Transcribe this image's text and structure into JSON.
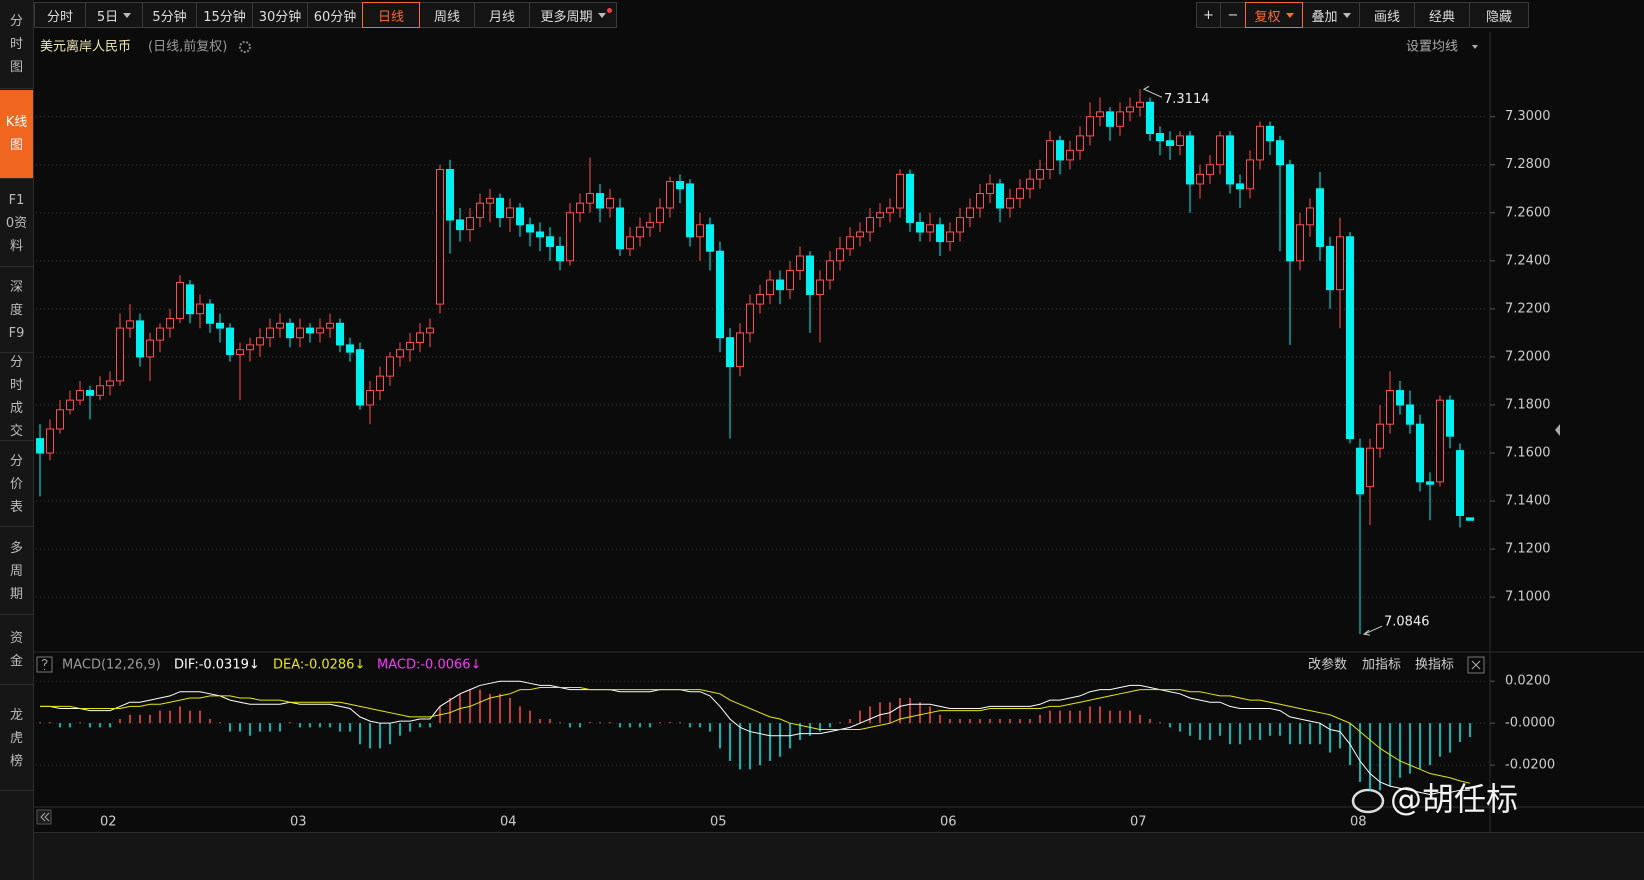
{
  "toolbar": {
    "periods": [
      "分时",
      "5日",
      "5分钟",
      "15分钟",
      "30分钟",
      "60分钟",
      "日线",
      "周线",
      "月线",
      "更多周期"
    ],
    "tools": [
      "+",
      "−",
      "复权",
      "叠加",
      "画线",
      "经典",
      "隐藏"
    ]
  },
  "sidebar": [
    "分时图",
    "K线图",
    "F10资料",
    "深度F9",
    "分时成交",
    "分价表",
    "多周期",
    "资金",
    "龙虎榜"
  ],
  "watermark": "@胡任标",
  "chart_data": {
    "type": "candlestick",
    "title": "美元离岸人民币",
    "subtitle": "(日线,前复权)",
    "ma_setting": "设置均线",
    "up_color": "#ff4d4d",
    "down_color": "#00f0f0",
    "grid": true,
    "ylim": [
      7.078,
      7.334
    ],
    "yticks": [
      {
        "value": 7.1,
        "label": "7.1000"
      },
      {
        "value": 7.12,
        "label": "7.1200"
      },
      {
        "value": 7.14,
        "label": "7.1400"
      },
      {
        "value": 7.16,
        "label": "7.1600"
      },
      {
        "value": 7.18,
        "label": "7.1800"
      },
      {
        "value": 7.2,
        "label": "7.2000"
      },
      {
        "value": 7.22,
        "label": "7.2200"
      },
      {
        "value": 7.24,
        "label": "7.2400"
      },
      {
        "value": 7.26,
        "label": "7.2600"
      },
      {
        "value": 7.28,
        "label": "7.2800"
      },
      {
        "value": 7.3,
        "label": "7.3000"
      }
    ],
    "max_label": 7.3114,
    "min_label": 7.0846,
    "categories": [
      null,
      null,
      null,
      null,
      null,
      null,
      null,
      "02",
      null,
      null,
      null,
      null,
      null,
      null,
      null,
      null,
      null,
      null,
      null,
      null,
      null,
      null,
      null,
      null,
      null,
      null,
      "03",
      null,
      null,
      null,
      null,
      null,
      null,
      null,
      null,
      null,
      null,
      null,
      null,
      null,
      null,
      null,
      null,
      null,
      null,
      null,
      null,
      "04",
      null,
      null,
      null,
      null,
      null,
      null,
      null,
      null,
      null,
      null,
      null,
      null,
      null,
      null,
      null,
      null,
      null,
      null,
      null,
      null,
      "05",
      null,
      null,
      null,
      null,
      null,
      null,
      null,
      null,
      null,
      null,
      null,
      null,
      null,
      null,
      null,
      null,
      null,
      null,
      null,
      null,
      null,
      null,
      "06",
      null,
      null,
      null,
      null,
      null,
      null,
      null,
      null,
      null,
      null,
      null,
      null,
      null,
      null,
      null,
      null,
      null,
      null,
      "07",
      null,
      null,
      null,
      null,
      null,
      null,
      null,
      null,
      null,
      null,
      null,
      null,
      null,
      null,
      null,
      null,
      null,
      null,
      null,
      null,
      null,
      "08",
      null,
      null,
      null,
      null,
      null,
      null,
      null,
      null,
      null,
      null,
      null
    ],
    "open": [
      7.166,
      7.16,
      7.17,
      7.178,
      7.182,
      7.186,
      7.184,
      7.188,
      7.19,
      7.212,
      7.215,
      7.2,
      7.207,
      7.212,
      7.216,
      7.23,
      7.218,
      7.222,
      7.214,
      7.212,
      7.201,
      7.203,
      7.205,
      7.208,
      7.212,
      7.214,
      7.208,
      7.212,
      7.21,
      7.212,
      7.214,
      7.205,
      7.203,
      7.18,
      7.186,
      7.192,
      7.2,
      7.203,
      7.206,
      7.21,
      7.222,
      7.278,
      7.257,
      7.253,
      7.258,
      7.264,
      7.266,
      7.258,
      7.262,
      7.255,
      7.252,
      7.25,
      7.246,
      7.24,
      7.26,
      7.264,
      7.268,
      7.262,
      7.262,
      7.245,
      7.25,
      7.254,
      7.256,
      7.262,
      7.273,
      7.272,
      7.25,
      7.255,
      7.244,
      7.208,
      7.196,
      7.21,
      7.222,
      7.226,
      7.232,
      7.228,
      7.236,
      7.242,
      7.226,
      7.232,
      7.24,
      7.245,
      7.25,
      7.252,
      7.258,
      7.26,
      7.262,
      7.276,
      7.256,
      7.252,
      7.255,
      7.248,
      7.252,
      7.258,
      7.262,
      7.268,
      7.272,
      7.262,
      7.266,
      7.27,
      7.274,
      7.278,
      7.29,
      7.282,
      7.286,
      7.292,
      7.3,
      7.302,
      7.296,
      7.302,
      7.304,
      7.306,
      7.293,
      7.29,
      7.288,
      7.292,
      7.272,
      7.276,
      7.28,
      7.292,
      7.272,
      7.27,
      7.282,
      7.296,
      7.29,
      7.28,
      7.24,
      7.255,
      7.27,
      7.246,
      7.228,
      7.25,
      7.162,
      7.146,
      7.162,
      7.172,
      7.186,
      7.18,
      7.172,
      7.148,
      7.148,
      7.182,
      7.161,
      7.133
    ],
    "high": [
      7.172,
      7.174,
      7.182,
      7.186,
      7.19,
      7.188,
      7.192,
      7.194,
      7.218,
      7.222,
      7.218,
      7.21,
      7.214,
      7.22,
      7.234,
      7.232,
      7.226,
      7.224,
      7.218,
      7.214,
      7.206,
      7.208,
      7.212,
      7.216,
      7.218,
      7.216,
      7.216,
      7.214,
      7.216,
      7.218,
      7.216,
      7.208,
      7.206,
      7.19,
      7.196,
      7.202,
      7.206,
      7.21,
      7.214,
      7.216,
      7.28,
      7.282,
      7.262,
      7.262,
      7.268,
      7.27,
      7.268,
      7.266,
      7.264,
      7.258,
      7.256,
      7.254,
      7.25,
      7.264,
      7.268,
      7.283,
      7.272,
      7.27,
      7.266,
      7.254,
      7.258,
      7.26,
      7.266,
      7.275,
      7.276,
      7.274,
      7.26,
      7.258,
      7.248,
      7.212,
      7.214,
      7.226,
      7.23,
      7.236,
      7.236,
      7.24,
      7.246,
      7.244,
      7.236,
      7.244,
      7.25,
      7.254,
      7.256,
      7.262,
      7.264,
      7.266,
      7.278,
      7.278,
      7.26,
      7.26,
      7.258,
      7.256,
      7.262,
      7.266,
      7.272,
      7.276,
      7.274,
      7.27,
      7.274,
      7.278,
      7.282,
      7.294,
      7.292,
      7.29,
      7.296,
      7.306,
      7.308,
      7.304,
      7.306,
      7.308,
      7.3114,
      7.308,
      7.296,
      7.294,
      7.294,
      7.294,
      7.28,
      7.284,
      7.294,
      7.294,
      7.276,
      7.286,
      7.298,
      7.298,
      7.292,
      7.282,
      7.26,
      7.266,
      7.277,
      7.25,
      7.258,
      7.252,
      7.166,
      7.166,
      7.18,
      7.194,
      7.19,
      7.186,
      7.176,
      7.152,
      7.184,
      7.184,
      7.164,
      7.133
    ],
    "low": [
      7.142,
      7.157,
      7.168,
      7.176,
      7.18,
      7.174,
      7.182,
      7.184,
      7.188,
      7.208,
      7.196,
      7.19,
      7.202,
      7.208,
      7.214,
      7.214,
      7.212,
      7.21,
      7.206,
      7.198,
      7.182,
      7.198,
      7.2,
      7.204,
      7.208,
      7.204,
      7.204,
      7.206,
      7.206,
      7.208,
      7.202,
      7.198,
      7.178,
      7.172,
      7.182,
      7.188,
      7.196,
      7.198,
      7.202,
      7.204,
      7.218,
      7.243,
      7.248,
      7.248,
      7.254,
      7.256,
      7.254,
      7.252,
      7.25,
      7.246,
      7.244,
      7.24,
      7.236,
      7.238,
      7.256,
      7.26,
      7.256,
      7.258,
      7.242,
      7.242,
      7.246,
      7.25,
      7.252,
      7.258,
      7.264,
      7.246,
      7.24,
      7.236,
      7.202,
      7.166,
      7.192,
      7.206,
      7.218,
      7.222,
      7.222,
      7.224,
      7.232,
      7.21,
      7.206,
      7.228,
      7.236,
      7.242,
      7.246,
      7.248,
      7.254,
      7.256,
      7.258,
      7.252,
      7.248,
      7.248,
      7.242,
      7.244,
      7.248,
      7.254,
      7.258,
      7.264,
      7.256,
      7.258,
      7.262,
      7.266,
      7.27,
      7.274,
      7.276,
      7.278,
      7.282,
      7.288,
      7.296,
      7.29,
      7.292,
      7.298,
      7.3,
      7.29,
      7.284,
      7.282,
      7.284,
      7.26,
      7.266,
      7.272,
      7.276,
      7.268,
      7.262,
      7.266,
      7.278,
      7.284,
      7.244,
      7.205,
      7.236,
      7.25,
      7.24,
      7.22,
      7.212,
      7.164,
      7.0846,
      7.13,
      7.158,
      7.168,
      7.176,
      7.168,
      7.144,
      7.132,
      7.146,
      7.162,
      7.129,
      7.132
    ],
    "close": [
      7.16,
      7.17,
      7.178,
      7.182,
      7.186,
      7.184,
      7.188,
      7.19,
      7.212,
      7.215,
      7.2,
      7.207,
      7.212,
      7.216,
      7.231,
      7.218,
      7.222,
      7.214,
      7.212,
      7.201,
      7.203,
      7.205,
      7.208,
      7.212,
      7.214,
      7.208,
      7.212,
      7.21,
      7.212,
      7.214,
      7.205,
      7.202,
      7.18,
      7.186,
      7.192,
      7.2,
      7.203,
      7.206,
      7.21,
      7.212,
      7.278,
      7.257,
      7.253,
      7.258,
      7.264,
      7.266,
      7.258,
      7.262,
      7.255,
      7.252,
      7.25,
      7.246,
      7.24,
      7.26,
      7.264,
      7.268,
      7.262,
      7.266,
      7.245,
      7.25,
      7.254,
      7.256,
      7.262,
      7.273,
      7.27,
      7.25,
      7.255,
      7.244,
      7.208,
      7.196,
      7.21,
      7.222,
      7.226,
      7.232,
      7.228,
      7.236,
      7.242,
      7.226,
      7.232,
      7.24,
      7.245,
      7.25,
      7.252,
      7.258,
      7.26,
      7.262,
      7.276,
      7.256,
      7.252,
      7.255,
      7.248,
      7.252,
      7.258,
      7.262,
      7.268,
      7.272,
      7.262,
      7.266,
      7.27,
      7.274,
      7.278,
      7.29,
      7.282,
      7.286,
      7.292,
      7.3,
      7.302,
      7.296,
      7.302,
      7.304,
      7.306,
      7.293,
      7.29,
      7.288,
      7.292,
      7.272,
      7.276,
      7.28,
      7.292,
      7.272,
      7.27,
      7.282,
      7.296,
      7.29,
      7.28,
      7.24,
      7.255,
      7.262,
      7.246,
      7.228,
      7.25,
      7.166,
      7.143,
      7.162,
      7.172,
      7.186,
      7.18,
      7.172,
      7.148,
      7.147,
      7.182,
      7.167,
      7.134,
      7.132
    ],
    "macd": {
      "title": "MACD(12,26,9)",
      "buttons": [
        "改参数",
        "加指标",
        "换指标"
      ],
      "ylim": [
        -0.039,
        0.0325
      ],
      "yticks": [
        {
          "value": 0.02,
          "label": "0.0200"
        },
        {
          "value": 0,
          "label": "-0.0000"
        },
        {
          "value": -0.02,
          "label": "-0.0200"
        }
      ],
      "series": [
        {
          "name": "DIF",
          "legend": "DIF:-0.0319↓",
          "color": "#ffffff",
          "values": [
            0.008,
            0.008,
            0.007,
            0.007,
            0.007,
            0.006,
            0.006,
            0.006,
            0.008,
            0.01,
            0.01,
            0.011,
            0.012,
            0.013,
            0.015,
            0.015,
            0.015,
            0.014,
            0.013,
            0.011,
            0.01,
            0.009,
            0.009,
            0.009,
            0.009,
            0.01,
            0.009,
            0.009,
            0.009,
            0.009,
            0.008,
            0.007,
            0.003,
            0.001,
            0.0,
            0.0,
            0.001,
            0.001,
            0.002,
            0.002,
            0.008,
            0.011,
            0.014,
            0.016,
            0.018,
            0.019,
            0.02,
            0.02,
            0.02,
            0.019,
            0.018,
            0.018,
            0.017,
            0.016,
            0.016,
            0.016,
            0.016,
            0.016,
            0.015,
            0.015,
            0.015,
            0.015,
            0.016,
            0.016,
            0.016,
            0.015,
            0.015,
            0.013,
            0.008,
            0.002,
            -0.002,
            -0.004,
            -0.005,
            -0.006,
            -0.006,
            -0.006,
            -0.005,
            -0.005,
            -0.005,
            -0.004,
            -0.003,
            -0.002,
            0.0,
            0.002,
            0.004,
            0.005,
            0.008,
            0.009,
            0.009,
            0.009,
            0.008,
            0.007,
            0.007,
            0.007,
            0.007,
            0.008,
            0.008,
            0.008,
            0.008,
            0.008,
            0.009,
            0.011,
            0.011,
            0.012,
            0.013,
            0.015,
            0.016,
            0.016,
            0.017,
            0.018,
            0.018,
            0.017,
            0.016,
            0.015,
            0.014,
            0.012,
            0.011,
            0.01,
            0.01,
            0.008,
            0.007,
            0.007,
            0.007,
            0.007,
            0.006,
            0.003,
            0.002,
            0.001,
            0.0,
            -0.003,
            -0.004,
            -0.01,
            -0.018,
            -0.024,
            -0.028,
            -0.03,
            -0.031,
            -0.032,
            -0.033,
            -0.034,
            -0.033,
            -0.033,
            -0.032,
            -0.0319
          ]
        },
        {
          "name": "DEA",
          "legend": "DEA:-0.0286↓",
          "color": "#e8e800",
          "values": [
            0.008,
            0.008,
            0.008,
            0.008,
            0.007,
            0.007,
            0.007,
            0.007,
            0.007,
            0.008,
            0.008,
            0.009,
            0.009,
            0.01,
            0.011,
            0.012,
            0.012,
            0.013,
            0.013,
            0.013,
            0.012,
            0.012,
            0.011,
            0.011,
            0.011,
            0.01,
            0.01,
            0.01,
            0.01,
            0.01,
            0.01,
            0.009,
            0.008,
            0.007,
            0.006,
            0.005,
            0.004,
            0.003,
            0.003,
            0.003,
            0.004,
            0.005,
            0.007,
            0.008,
            0.01,
            0.012,
            0.013,
            0.014,
            0.016,
            0.016,
            0.017,
            0.017,
            0.017,
            0.017,
            0.017,
            0.016,
            0.016,
            0.016,
            0.016,
            0.016,
            0.016,
            0.016,
            0.016,
            0.016,
            0.016,
            0.016,
            0.016,
            0.015,
            0.014,
            0.011,
            0.009,
            0.007,
            0.005,
            0.003,
            0.002,
            0.0,
            -0.001,
            -0.002,
            -0.003,
            -0.003,
            -0.003,
            -0.003,
            -0.003,
            -0.002,
            -0.001,
            0.0,
            0.002,
            0.003,
            0.004,
            0.005,
            0.006,
            0.006,
            0.006,
            0.006,
            0.006,
            0.007,
            0.007,
            0.007,
            0.007,
            0.007,
            0.007,
            0.008,
            0.008,
            0.009,
            0.01,
            0.011,
            0.012,
            0.013,
            0.014,
            0.015,
            0.016,
            0.016,
            0.016,
            0.016,
            0.016,
            0.015,
            0.015,
            0.014,
            0.013,
            0.013,
            0.012,
            0.011,
            0.011,
            0.01,
            0.009,
            0.008,
            0.007,
            0.006,
            0.005,
            0.004,
            0.002,
            0.0,
            -0.004,
            -0.008,
            -0.012,
            -0.015,
            -0.018,
            -0.02,
            -0.022,
            -0.024,
            -0.025,
            -0.026,
            -0.0275,
            -0.0286
          ]
        },
        {
          "name": "MACD",
          "legend": "MACD:-0.0066↓",
          "color": "#ff33ff",
          "values": [
            0,
            0,
            -0.002,
            -0.002,
            0,
            -0.002,
            -0.002,
            -0.002,
            0.002,
            0.004,
            0.004,
            0.004,
            0.006,
            0.006,
            0.008,
            0.006,
            0.006,
            0.002,
            0,
            -0.004,
            -0.004,
            -0.006,
            -0.004,
            -0.004,
            -0.004,
            0,
            -0.002,
            -0.002,
            -0.002,
            -0.002,
            -0.004,
            -0.004,
            -0.01,
            -0.012,
            -0.012,
            -0.01,
            -0.006,
            -0.004,
            -0.002,
            -0.002,
            0.008,
            0.012,
            0.014,
            0.016,
            0.016,
            0.014,
            0.014,
            0.012,
            0.008,
            0.006,
            0.002,
            0.002,
            0,
            -0.002,
            -0.002,
            0,
            0,
            0,
            -0.002,
            -0.002,
            -0.002,
            -0.002,
            0,
            0,
            0,
            -0.002,
            -0.002,
            -0.004,
            -0.012,
            -0.018,
            -0.022,
            -0.022,
            -0.02,
            -0.018,
            -0.016,
            -0.012,
            -0.008,
            -0.006,
            -0.004,
            -0.002,
            0,
            0.002,
            0.006,
            0.008,
            0.01,
            0.01,
            0.012,
            0.012,
            0.01,
            0.008,
            0.004,
            0.002,
            0.002,
            0.002,
            0.002,
            0.002,
            0.002,
            0.002,
            0.002,
            0.002,
            0.004,
            0.006,
            0.006,
            0.006,
            0.006,
            0.008,
            0.008,
            0.006,
            0.006,
            0.006,
            0.004,
            0.002,
            0,
            -0.002,
            -0.004,
            -0.006,
            -0.008,
            -0.008,
            -0.006,
            -0.01,
            -0.01,
            -0.008,
            -0.008,
            -0.006,
            -0.006,
            -0.01,
            -0.01,
            -0.01,
            -0.01,
            -0.014,
            -0.012,
            -0.02,
            -0.028,
            -0.032,
            -0.032,
            -0.03,
            -0.026,
            -0.024,
            -0.022,
            -0.02,
            -0.016,
            -0.014,
            -0.009,
            -0.0066
          ]
        }
      ]
    }
  }
}
